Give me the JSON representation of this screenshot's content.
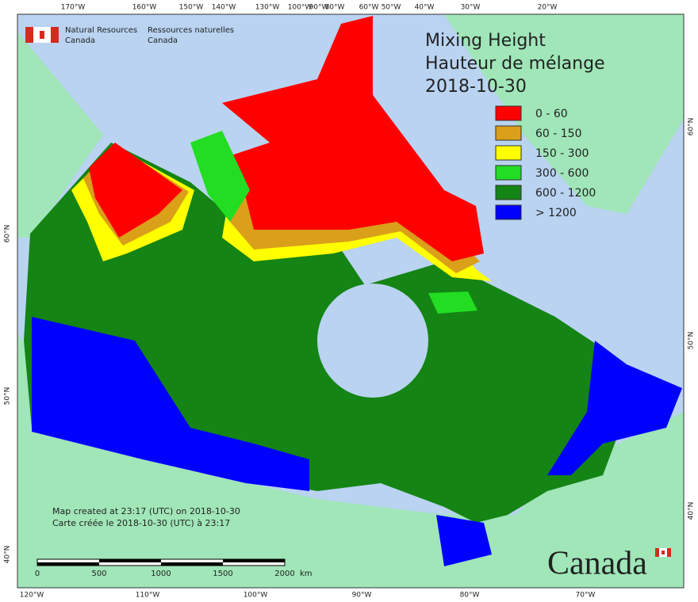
{
  "header": {
    "agency_en": "Natural Resources",
    "agency_en_2": "Canada",
    "agency_fr": "Ressources naturelles",
    "agency_fr_2": "Canada"
  },
  "title": [
    "Mixing Height",
    "Hauteur de mélange",
    "2018-10-30"
  ],
  "legend": [
    {
      "label": "0 - 60",
      "color": "#ff0000"
    },
    {
      "label": "60 - 150",
      "color": "#daa01a"
    },
    {
      "label": "150 - 300",
      "color": "#ffff00"
    },
    {
      "label": "300 - 600",
      "color": "#22dd22"
    },
    {
      "label": "600 - 1200",
      "color": "#148414"
    },
    {
      "label": "> 1200",
      "color": "#0000ff"
    }
  ],
  "graticule": {
    "top": [
      "170°W",
      "160°W",
      "150°W",
      "140°W",
      "130°W",
      "100°W",
      "90°W",
      "80°W",
      "60°W",
      "50°W",
      "40°W",
      "30°W",
      "20°W"
    ],
    "bottom": [
      "120°W",
      "110°W",
      "100°W",
      "90°W",
      "80°W",
      "70°W"
    ],
    "left": [
      "60°N",
      "50°N",
      "40°N"
    ],
    "right": [
      "60°N",
      "50°N",
      "40°N"
    ]
  },
  "notes": [
    "Map created at 23:17 (UTC) on 2018-10-30",
    "Carte créée le 2018-10-30 (UTC) à 23:17"
  ],
  "scale_bar": {
    "labels": [
      "0",
      "500",
      "1000",
      "1500",
      "2000"
    ],
    "unit": "km"
  },
  "wordmark": "Canada"
}
